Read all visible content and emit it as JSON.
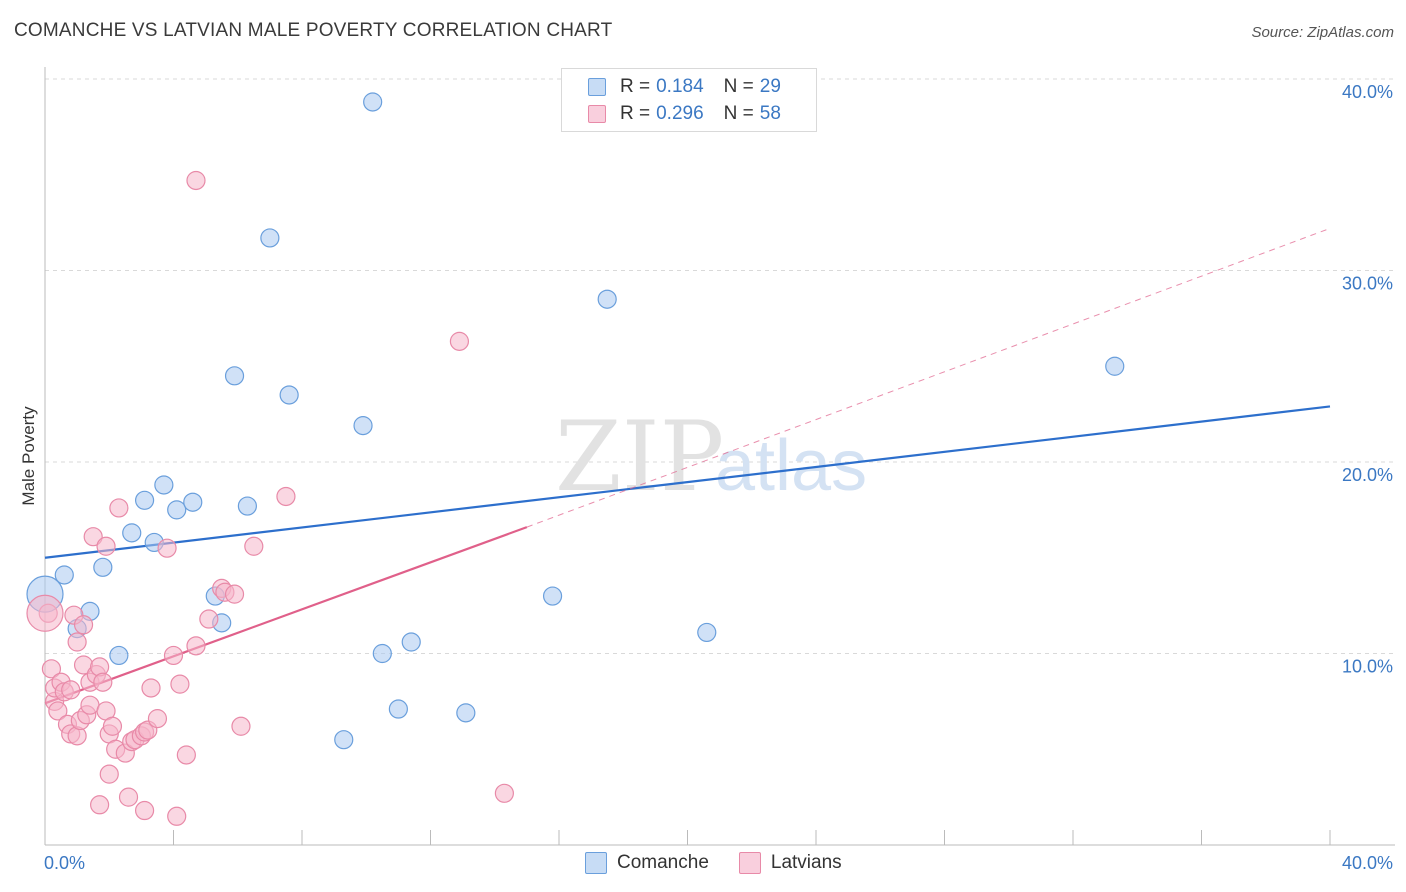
{
  "title": "COMANCHE VS LATVIAN MALE POVERTY CORRELATION CHART",
  "source": "Source: ZipAtlas.com",
  "watermark": {
    "zip": "ZIP",
    "atlas": "atlas"
  },
  "colors": {
    "comanche_fill": "#a9c8f0",
    "comanche_stroke": "#6a9fdc",
    "comanche_line": "#2d6fcc",
    "latvians_fill": "#f6b6cb",
    "latvians_stroke": "#e88aa8",
    "latvians_line": "#e0608a",
    "tick_label": "#3b78c3",
    "grid": "#d9d9d9"
  },
  "legend": {
    "rows": [
      {
        "r_label": "R = ",
        "r_value": "0.184",
        "n_label": "N = ",
        "n_value": "29"
      },
      {
        "r_label": "R = ",
        "r_value": "0.296",
        "n_label": "N = ",
        "n_value": "58"
      }
    ]
  },
  "bottom_legend": {
    "comanche": "Comanche",
    "latvians": "Latvians"
  },
  "chart_data": {
    "type": "scatter",
    "title": "COMANCHE VS LATVIAN MALE POVERTY CORRELATION CHART",
    "xlabel": "",
    "ylabel": "Male Poverty",
    "xlim": [
      0,
      40
    ],
    "ylim": [
      0,
      40
    ],
    "x_tick_labels": [
      "0.0%",
      "40.0%"
    ],
    "y_ticks": [
      10,
      20,
      30,
      40
    ],
    "y_tick_labels": [
      "10.0%",
      "20.0%",
      "30.0%",
      "40.0%"
    ],
    "grid": "horizontal dashed",
    "legend_position": "top-center",
    "series": [
      {
        "name": "Comanche",
        "points": [
          [
            0.0,
            13.1
          ],
          [
            0.6,
            14.1
          ],
          [
            1.4,
            12.2
          ],
          [
            1.0,
            11.3
          ],
          [
            1.8,
            14.5
          ],
          [
            2.3,
            9.9
          ],
          [
            2.7,
            16.3
          ],
          [
            3.1,
            18.0
          ],
          [
            3.4,
            15.8
          ],
          [
            3.7,
            18.8
          ],
          [
            4.1,
            17.5
          ],
          [
            4.6,
            17.9
          ],
          [
            5.3,
            13.0
          ],
          [
            5.5,
            11.6
          ],
          [
            5.9,
            24.5
          ],
          [
            6.3,
            17.7
          ],
          [
            7.0,
            31.7
          ],
          [
            7.6,
            23.5
          ],
          [
            9.3,
            5.5
          ],
          [
            9.9,
            21.9
          ],
          [
            10.2,
            38.8
          ],
          [
            10.5,
            10.0
          ],
          [
            11.0,
            7.1
          ],
          [
            11.4,
            10.6
          ],
          [
            13.1,
            6.9
          ],
          [
            15.8,
            13.0
          ],
          [
            17.5,
            28.5
          ],
          [
            20.6,
            11.1
          ],
          [
            33.3,
            25.0
          ]
        ],
        "trend": {
          "x": [
            0,
            40
          ],
          "y": [
            15.0,
            22.9
          ]
        }
      },
      {
        "name": "Latvians",
        "points": [
          [
            0.1,
            12.1
          ],
          [
            0.2,
            9.2
          ],
          [
            0.3,
            7.5
          ],
          [
            0.3,
            8.2
          ],
          [
            0.4,
            7.0
          ],
          [
            0.5,
            8.5
          ],
          [
            0.6,
            8.0
          ],
          [
            0.7,
            6.3
          ],
          [
            0.8,
            8.1
          ],
          [
            0.8,
            5.8
          ],
          [
            0.9,
            12.0
          ],
          [
            1.0,
            10.6
          ],
          [
            1.0,
            5.7
          ],
          [
            1.1,
            6.5
          ],
          [
            1.2,
            11.5
          ],
          [
            1.2,
            9.4
          ],
          [
            1.3,
            6.8
          ],
          [
            1.4,
            8.5
          ],
          [
            1.4,
            7.3
          ],
          [
            1.5,
            16.1
          ],
          [
            1.6,
            8.9
          ],
          [
            1.7,
            2.1
          ],
          [
            1.7,
            9.3
          ],
          [
            1.8,
            8.5
          ],
          [
            1.9,
            15.6
          ],
          [
            1.9,
            7.0
          ],
          [
            2.0,
            5.8
          ],
          [
            2.0,
            3.7
          ],
          [
            2.1,
            6.2
          ],
          [
            2.2,
            5.0
          ],
          [
            2.3,
            17.6
          ],
          [
            2.5,
            4.8
          ],
          [
            2.6,
            2.5
          ],
          [
            2.7,
            5.4
          ],
          [
            2.8,
            5.5
          ],
          [
            3.0,
            5.7
          ],
          [
            3.1,
            5.9
          ],
          [
            3.1,
            1.8
          ],
          [
            3.2,
            6.0
          ],
          [
            3.3,
            8.2
          ],
          [
            3.5,
            6.6
          ],
          [
            3.8,
            15.5
          ],
          [
            4.0,
            9.9
          ],
          [
            4.1,
            1.5
          ],
          [
            4.2,
            8.4
          ],
          [
            4.4,
            4.7
          ],
          [
            4.7,
            34.7
          ],
          [
            4.7,
            10.4
          ],
          [
            5.1,
            11.8
          ],
          [
            5.5,
            13.4
          ],
          [
            5.6,
            13.2
          ],
          [
            5.9,
            13.1
          ],
          [
            6.1,
            6.2
          ],
          [
            6.5,
            15.6
          ],
          [
            7.5,
            18.2
          ],
          [
            12.9,
            26.3
          ],
          [
            14.3,
            2.7
          ],
          [
            0.0,
            12.1
          ]
        ],
        "trend": {
          "x": [
            0,
            15
          ],
          "y": [
            7.4,
            16.6
          ]
        },
        "trend_extension": {
          "x": [
            15,
            40
          ],
          "y": [
            16.6,
            32.2
          ]
        }
      }
    ]
  }
}
